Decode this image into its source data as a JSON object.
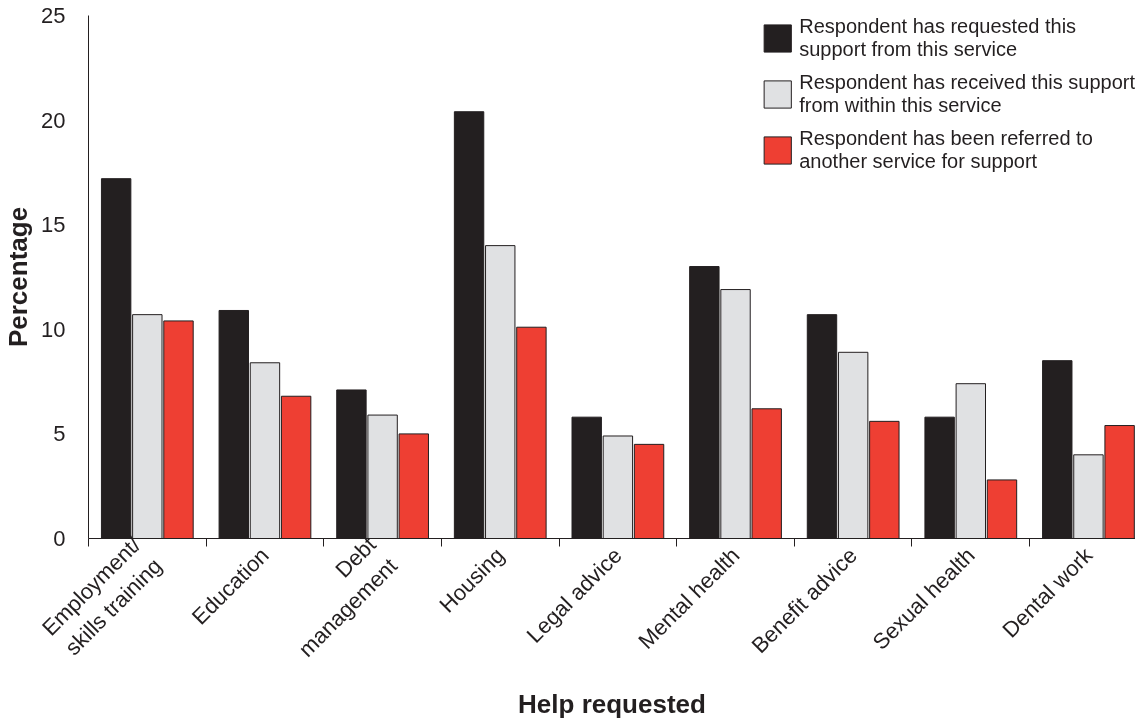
{
  "chart_data": {
    "type": "bar",
    "xlabel": "Help requested",
    "ylabel": "Percentage",
    "categories": [
      "Employment/\nskills training",
      "Education",
      "Debt\nmanagement",
      "Housing",
      "Legal advice",
      "Mental health",
      "Benefit advice",
      "Sexual health",
      "Dental work"
    ],
    "series": [
      {
        "name": "Respondent has requested this support from this service",
        "color": "#231f20",
        "values": [
          17.2,
          10.9,
          7.1,
          20.4,
          5.8,
          13.0,
          10.7,
          5.8,
          8.5
        ]
      },
      {
        "name": "Respondent has received this support from within this service",
        "color": "#e0e1e3",
        "values": [
          10.7,
          8.4,
          5.9,
          14.0,
          4.9,
          11.9,
          8.9,
          7.4,
          4.0
        ]
      },
      {
        "name": "Respondent has been referred to another service for support",
        "color": "#ee3f33",
        "values": [
          10.4,
          6.8,
          5.0,
          10.1,
          4.5,
          6.2,
          5.6,
          2.8,
          5.4
        ]
      }
    ],
    "ylim": [
      0,
      25
    ],
    "yticks": [
      0,
      5,
      10,
      15,
      20,
      25
    ],
    "grid": false,
    "legend": "top right"
  }
}
